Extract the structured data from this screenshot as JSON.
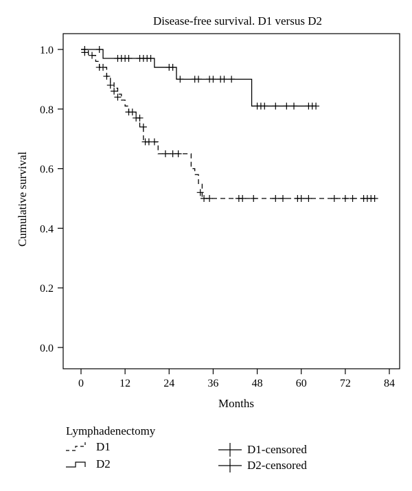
{
  "chart_data": {
    "type": "line",
    "title": "Disease-free survival. D1 versus D2",
    "xlabel": "Months",
    "ylabel": "Cumulative survival",
    "xlim": [
      0,
      84
    ],
    "ylim": [
      0,
      1
    ],
    "xticks": [
      0,
      12,
      24,
      36,
      48,
      60,
      72,
      84
    ],
    "yticks": [
      0.0,
      0.2,
      0.4,
      0.6,
      0.8,
      1.0
    ],
    "ytick_labels": [
      "0.0",
      "0.2",
      "0.4",
      "0.6",
      "0.8",
      "1.0"
    ],
    "grid": false,
    "legend_position": "bottom",
    "series": [
      {
        "name": "D1",
        "style": "dashed-step",
        "x": [
          0,
          2,
          4,
          5,
          6,
          7,
          8,
          9,
          10,
          11,
          12,
          13,
          15,
          16,
          17,
          18,
          21,
          30,
          31,
          32,
          33
        ],
        "y": [
          1.0,
          0.98,
          0.96,
          0.94,
          0.94,
          0.91,
          0.89,
          0.87,
          0.85,
          0.83,
          0.81,
          0.79,
          0.77,
          0.74,
          0.69,
          0.69,
          0.65,
          0.6,
          0.58,
          0.55,
          0.5
        ],
        "end_x": 80,
        "censored": [
          {
            "x": 1,
            "y": 0.99
          },
          {
            "x": 3,
            "y": 0.98
          },
          {
            "x": 5,
            "y": 0.94
          },
          {
            "x": 6,
            "y": 0.94
          },
          {
            "x": 7,
            "y": 0.91
          },
          {
            "x": 8,
            "y": 0.88
          },
          {
            "x": 9,
            "y": 0.86
          },
          {
            "x": 10,
            "y": 0.84
          },
          {
            "x": 13,
            "y": 0.79
          },
          {
            "x": 14,
            "y": 0.79
          },
          {
            "x": 15,
            "y": 0.77
          },
          {
            "x": 16,
            "y": 0.77
          },
          {
            "x": 17,
            "y": 0.74
          },
          {
            "x": 17.5,
            "y": 0.69
          },
          {
            "x": 18.5,
            "y": 0.69
          },
          {
            "x": 20,
            "y": 0.69
          },
          {
            "x": 23,
            "y": 0.65
          },
          {
            "x": 25,
            "y": 0.65
          },
          {
            "x": 26.5,
            "y": 0.65
          },
          {
            "x": 32.5,
            "y": 0.52
          },
          {
            "x": 33.5,
            "y": 0.5
          },
          {
            "x": 35,
            "y": 0.5
          },
          {
            "x": 43,
            "y": 0.5
          },
          {
            "x": 44,
            "y": 0.5
          },
          {
            "x": 47,
            "y": 0.5
          },
          {
            "x": 53,
            "y": 0.5
          },
          {
            "x": 55,
            "y": 0.5
          },
          {
            "x": 59,
            "y": 0.5
          },
          {
            "x": 60,
            "y": 0.5
          },
          {
            "x": 62,
            "y": 0.5
          },
          {
            "x": 69,
            "y": 0.5
          },
          {
            "x": 72,
            "y": 0.5
          },
          {
            "x": 74,
            "y": 0.5
          },
          {
            "x": 77,
            "y": 0.5
          },
          {
            "x": 78,
            "y": 0.5
          },
          {
            "x": 79,
            "y": 0.5
          },
          {
            "x": 80,
            "y": 0.5
          }
        ]
      },
      {
        "name": "D2",
        "style": "solid-step",
        "x": [
          0,
          6,
          20,
          26,
          46.5
        ],
        "y": [
          1.0,
          0.97,
          0.94,
          0.9,
          0.81
        ],
        "end_x": 64,
        "censored": [
          {
            "x": 1,
            "y": 1.0
          },
          {
            "x": 5,
            "y": 1.0
          },
          {
            "x": 10,
            "y": 0.97
          },
          {
            "x": 11,
            "y": 0.97
          },
          {
            "x": 12,
            "y": 0.97
          },
          {
            "x": 13,
            "y": 0.97
          },
          {
            "x": 16,
            "y": 0.97
          },
          {
            "x": 17,
            "y": 0.97
          },
          {
            "x": 18,
            "y": 0.97
          },
          {
            "x": 19,
            "y": 0.97
          },
          {
            "x": 24,
            "y": 0.94
          },
          {
            "x": 25,
            "y": 0.94
          },
          {
            "x": 27,
            "y": 0.9
          },
          {
            "x": 31,
            "y": 0.9
          },
          {
            "x": 32,
            "y": 0.9
          },
          {
            "x": 35,
            "y": 0.9
          },
          {
            "x": 36,
            "y": 0.9
          },
          {
            "x": 38,
            "y": 0.9
          },
          {
            "x": 39,
            "y": 0.9
          },
          {
            "x": 41,
            "y": 0.9
          },
          {
            "x": 48,
            "y": 0.81
          },
          {
            "x": 49,
            "y": 0.81
          },
          {
            "x": 50,
            "y": 0.81
          },
          {
            "x": 53,
            "y": 0.81
          },
          {
            "x": 56,
            "y": 0.81
          },
          {
            "x": 58,
            "y": 0.81
          },
          {
            "x": 62,
            "y": 0.81
          },
          {
            "x": 63,
            "y": 0.81
          },
          {
            "x": 64,
            "y": 0.81
          }
        ]
      }
    ],
    "legend": {
      "title": "Lymphadenectomy",
      "items": [
        {
          "label": "D1",
          "style": "dashed-step"
        },
        {
          "label": "D2",
          "style": "solid-step"
        },
        {
          "label": "D1-censored",
          "style": "censor-mark"
        },
        {
          "label": "D2-censored",
          "style": "censor-mark"
        }
      ]
    }
  }
}
